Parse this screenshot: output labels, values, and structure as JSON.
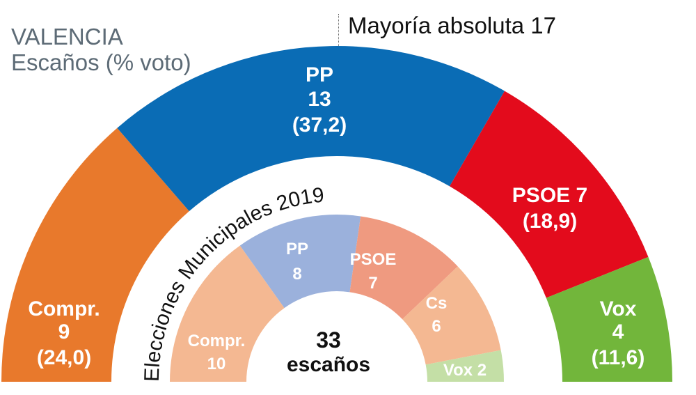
{
  "header": {
    "title": "VALENCIA",
    "subtitle": "Escaños (% voto)",
    "majority": "Mayoría absoluta 17"
  },
  "center": {
    "total": "33",
    "unit": "escaños"
  },
  "inner_title": "Elecciones Municipales 2019",
  "outer_labels": {
    "compr": [
      "Compr.",
      "9",
      "(24,0)"
    ],
    "pp": [
      "PP",
      "13",
      "(37,2)"
    ],
    "psoe": [
      "PSOE 7",
      "(18,9)"
    ],
    "vox": [
      "Vox",
      "4",
      "(11,6)"
    ]
  },
  "inner_labels": {
    "compr": [
      "Compr.",
      "10"
    ],
    "pp": [
      "PP",
      "8"
    ],
    "psoe": [
      "PSOE",
      "7"
    ],
    "cs": [
      "Cs",
      "6"
    ],
    "vox": [
      "Vox 2"
    ]
  },
  "chart_data": [
    {
      "type": "pie",
      "title": "VALENCIA Escaños (% voto)",
      "subtitle": "Mayoría absoluta 17",
      "categories": [
        "Compr.",
        "PP",
        "PSOE",
        "Vox"
      ],
      "values": [
        9,
        13,
        7,
        4
      ],
      "vote_pct": [
        24.0,
        37.2,
        18.9,
        11.6
      ],
      "colors": [
        "#e8792c",
        "#0a6cb5",
        "#e30b1c",
        "#72b63b"
      ],
      "total": 33
    },
    {
      "type": "pie",
      "title": "Elecciones Municipales 2019",
      "categories": [
        "Compr.",
        "PP",
        "PSOE",
        "Cs",
        "Vox"
      ],
      "values": [
        10,
        8,
        7,
        6,
        2
      ],
      "colors": [
        "#f4b892",
        "#9bb1dc",
        "#ef9a80",
        "#f4b892",
        "#c4dfa6"
      ],
      "total": 33
    }
  ]
}
